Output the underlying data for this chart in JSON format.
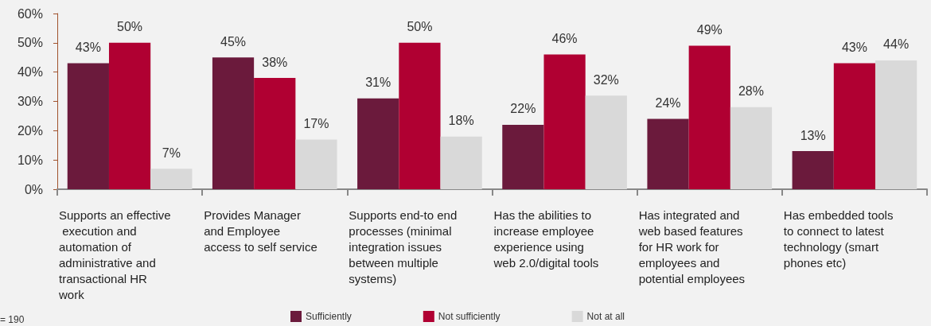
{
  "chart_data": {
    "type": "bar",
    "categories": [
      "Supports an effective execution and automation of administrative and transactional HR work",
      "Provides Manager and Employee access to self service",
      "Supports end-to end processes (minimal integration issues between multiple systems)",
      "Has the abilities to increase employee experience using web 2.0/digital tools",
      "Has integrated and web based features for HR work for employees and potential employees",
      "Has embedded tools to connect to latest technology (smart phones etc)"
    ],
    "series": [
      {
        "name": "Sufficiently",
        "color": "#6b1a3c",
        "values": [
          43,
          45,
          31,
          22,
          24,
          13
        ],
        "value_labels": [
          "43%",
          "45%",
          "31%",
          "22%",
          "24%",
          "13%"
        ]
      },
      {
        "name": "Not sufficiently",
        "color": "#b00032",
        "values": [
          50,
          38,
          50,
          46,
          49,
          43
        ],
        "value_labels": [
          "50%",
          "38%",
          "50%",
          "46%",
          "49%",
          "43%"
        ]
      },
      {
        "name": "Not at all",
        "color": "#d9d9d9",
        "values": [
          7,
          17,
          18,
          32,
          28,
          44
        ],
        "value_labels": [
          "7%",
          "17%",
          "18%",
          "32%",
          "28%",
          "44%"
        ]
      }
    ],
    "ylim": [
      0,
      60
    ],
    "yticks": [
      {
        "value": 0,
        "label": "0%"
      },
      {
        "value": 10,
        "label": "10%"
      },
      {
        "value": 20,
        "label": "20%"
      },
      {
        "value": 30,
        "label": "30%"
      },
      {
        "value": 40,
        "label": "40%"
      },
      {
        "value": 50,
        "label": "50%"
      },
      {
        "value": 60,
        "label": "60%"
      }
    ],
    "grid": false,
    "legend": "bottom",
    "annotations": [
      "= 190"
    ]
  }
}
